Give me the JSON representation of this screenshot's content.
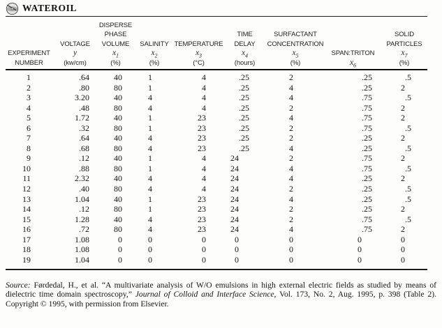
{
  "title": "WATEROIL",
  "icon": "dataset-disk-icon",
  "colors": {
    "background": "#fdfdfb",
    "text": "#161616",
    "rule": "#1a1a1a"
  },
  "table": {
    "columns": [
      {
        "id": "experiment-number",
        "lines": [
          {
            "t": "label",
            "text": "EXPERIMENT"
          },
          {
            "t": "label",
            "text": "NUMBER"
          }
        ]
      },
      {
        "id": "voltage",
        "lines": [
          {
            "t": "label",
            "text": "VOLTAGE"
          },
          {
            "t": "var",
            "sym": "y",
            "sub": ""
          },
          {
            "t": "label",
            "text": "(kw/cm)"
          }
        ]
      },
      {
        "id": "disperse-phase-volume",
        "lines": [
          {
            "t": "label",
            "text": "DISPERSE"
          },
          {
            "t": "label",
            "text": "PHASE"
          },
          {
            "t": "label",
            "text": "VOLUME"
          },
          {
            "t": "var",
            "sym": "x",
            "sub": "1"
          },
          {
            "t": "label",
            "text": "(%)"
          }
        ]
      },
      {
        "id": "salinity",
        "lines": [
          {
            "t": "label",
            "text": "SALINITY"
          },
          {
            "t": "var",
            "sym": "x",
            "sub": "2"
          },
          {
            "t": "label",
            "text": "(%)"
          }
        ]
      },
      {
        "id": "temperature",
        "lines": [
          {
            "t": "label",
            "text": "TEMPERATURE"
          },
          {
            "t": "var",
            "sym": "x",
            "sub": "3"
          },
          {
            "t": "label",
            "text": "(°C)"
          }
        ]
      },
      {
        "id": "time-delay",
        "lines": [
          {
            "t": "label",
            "text": "TIME"
          },
          {
            "t": "label",
            "text": "DELAY"
          },
          {
            "t": "var",
            "sym": "x",
            "sub": "4"
          },
          {
            "t": "label",
            "text": "(hours)"
          }
        ]
      },
      {
        "id": "surfactant-concentration",
        "lines": [
          {
            "t": "label",
            "text": "SURFACTANT"
          },
          {
            "t": "label",
            "text": "CONCENTRATION"
          },
          {
            "t": "var",
            "sym": "x",
            "sub": "5"
          },
          {
            "t": "label",
            "text": "(%)"
          }
        ]
      },
      {
        "id": "span-triton",
        "lines": [
          {
            "t": "label",
            "text": "SPAN:TRITON"
          },
          {
            "t": "var",
            "sym": "x",
            "sub": "6"
          }
        ]
      },
      {
        "id": "solid-particles",
        "lines": [
          {
            "t": "label",
            "text": "SOLID"
          },
          {
            "t": "label",
            "text": "PARTICLES"
          },
          {
            "t": "var",
            "sym": "x",
            "sub": "7"
          },
          {
            "t": "label",
            "text": "(%)"
          }
        ]
      }
    ],
    "rows": [
      [
        "1",
        ".64",
        "40",
        "1",
        "4",
        ".25",
        "2",
        ".25",
        ".5"
      ],
      [
        "2",
        ".80",
        "80",
        "1",
        "4",
        ".25",
        "4",
        ".25",
        "2"
      ],
      [
        "3",
        "3.20",
        "40",
        "4",
        "4",
        ".25",
        "4",
        ".75",
        ".5"
      ],
      [
        "4",
        ".48",
        "80",
        "4",
        "4",
        ".25",
        "2",
        ".75",
        "2"
      ],
      [
        "5",
        "1.72",
        "40",
        "1",
        "23",
        ".25",
        "4",
        ".75",
        "2"
      ],
      [
        "6",
        ".32",
        "80",
        "1",
        "23",
        ".25",
        "2",
        ".75",
        ".5"
      ],
      [
        "7",
        ".64",
        "40",
        "4",
        "23",
        ".25",
        "2",
        ".25",
        "2"
      ],
      [
        "8",
        ".68",
        "80",
        "4",
        "23",
        ".25",
        "4",
        ".25",
        ".5"
      ],
      [
        "9",
        ".12",
        "40",
        "1",
        "4",
        "24",
        "2",
        ".75",
        "2"
      ],
      [
        "10",
        ".88",
        "80",
        "1",
        "4",
        "24",
        "4",
        ".75",
        ".5"
      ],
      [
        "11",
        "2.32",
        "40",
        "4",
        "4",
        "24",
        "4",
        ".25",
        "2"
      ],
      [
        "12",
        ".40",
        "80",
        "4",
        "4",
        "24",
        "2",
        ".25",
        ".5"
      ],
      [
        "13",
        "1.04",
        "40",
        "1",
        "23",
        "24",
        "4",
        ".25",
        ".5"
      ],
      [
        "14",
        ".12",
        "80",
        "1",
        "23",
        "24",
        "2",
        ".25",
        "2"
      ],
      [
        "15",
        "1.28",
        "40",
        "4",
        "23",
        "24",
        "2",
        ".75",
        ".5"
      ],
      [
        "16",
        ".72",
        "80",
        "4",
        "23",
        "24",
        "4",
        ".75",
        "2"
      ],
      [
        "17",
        "1.08",
        "0",
        "0",
        "0",
        "0",
        "0",
        "0",
        "0"
      ],
      [
        "18",
        "1.08",
        "0",
        "0",
        "0",
        "0",
        "0",
        "0",
        "0"
      ],
      [
        "19",
        "1.04",
        "0",
        "0",
        "0",
        "0",
        "0",
        "0",
        "0"
      ]
    ]
  },
  "source": {
    "seg_source_label": "Source:",
    "seg_citation": " Førdedal, H., et al. “A multivariate analysis of W/O emulsions in high external electric fields as studied by means of dielectric time domain spectroscopy,” ",
    "seg_journal": "Journal of Colloid and Interface Science",
    "seg_tail": ", Vol. 173, No. 2, Aug. 1995, p. 398 (Table 2). Copyright © 1995, with permission from Elsevier."
  }
}
